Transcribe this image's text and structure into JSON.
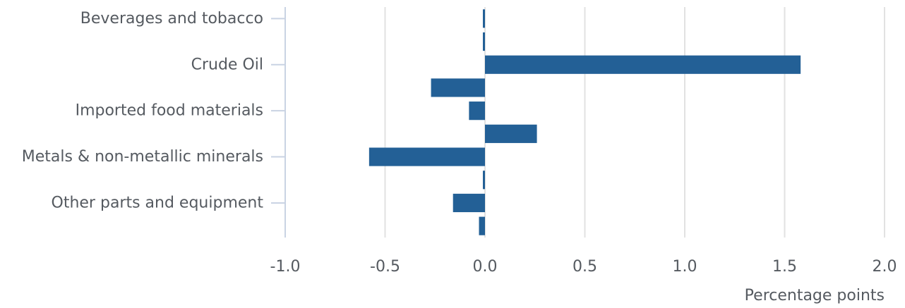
{
  "chart_data": {
    "type": "bar",
    "orientation": "horizontal",
    "title": "",
    "xlabel": "Percentage points",
    "ylabel": "",
    "xlim": [
      -1.0,
      2.0
    ],
    "xticks": [
      -1.0,
      -0.5,
      0.0,
      0.5,
      1.0,
      1.5,
      2.0
    ],
    "xtick_labels": [
      "-1.0",
      "-0.5",
      "0.0",
      "0.5",
      "1.0",
      "1.5",
      "2.0"
    ],
    "grid": true,
    "bar_color": "#236096",
    "category_labels": [
      "Beverages and tobacco",
      "Crude Oil",
      "Imported food materials",
      "Metals & non-metallic minerals",
      "Other parts and equipment"
    ],
    "bars": [
      {
        "value": -0.01,
        "label_index": 0
      },
      {
        "value": -0.01,
        "label_index": null
      },
      {
        "value": 1.58,
        "label_index": 1
      },
      {
        "value": -0.27,
        "label_index": null
      },
      {
        "value": -0.08,
        "label_index": 2
      },
      {
        "value": 0.26,
        "label_index": null
      },
      {
        "value": -0.58,
        "label_index": 3
      },
      {
        "value": -0.01,
        "label_index": null
      },
      {
        "value": -0.16,
        "label_index": 4
      },
      {
        "value": -0.03,
        "label_index": null
      }
    ]
  }
}
